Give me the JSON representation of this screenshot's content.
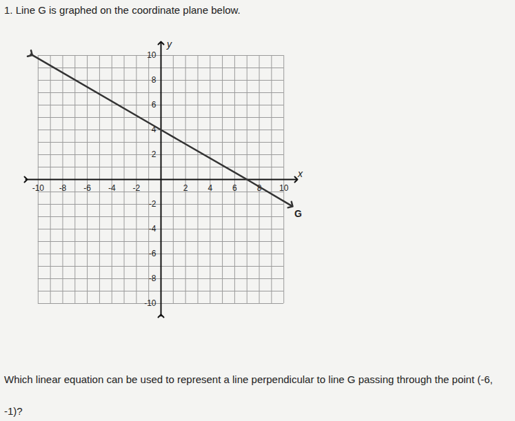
{
  "chart_data": {
    "type": "line",
    "title": "1. Line G is graphed on the coordinate plane below.",
    "x_label": "x",
    "y_label": "y",
    "series": [
      {
        "name": "G",
        "color": "#333333",
        "marker": "arrow",
        "x": [
          -10.6,
          0,
          7,
          10.6
        ],
        "values": [
          10.1,
          4,
          0,
          -2.1
        ]
      }
    ],
    "xlim": [
      -11,
      11
    ],
    "ylim": [
      -11,
      11
    ],
    "xticks": [
      -10,
      -8,
      -6,
      -4,
      -2,
      2,
      4,
      6,
      8,
      10
    ],
    "yticks": [
      -10,
      -8,
      -6,
      -4,
      -2,
      2,
      4,
      6,
      8,
      10
    ],
    "grid": true,
    "annotations": [
      "Which linear equation can be used to represent a line perpendicular to line G passing through the point (-6, -1)?"
    ]
  }
}
